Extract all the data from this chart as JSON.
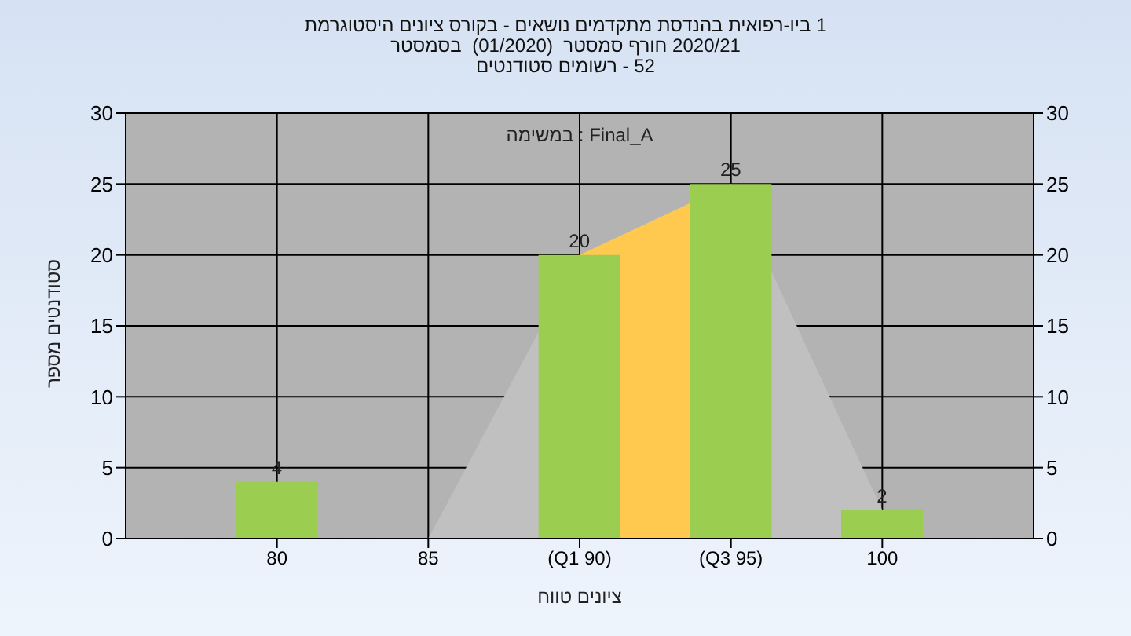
{
  "chart_data": {
    "type": "bar",
    "title": "היסטוגרמת ציונים בקורס - נושאים מתקדמים בהנדסת ביו-רפואית 1",
    "subtitle": "בסמסטר  (01/2020)  סמסטר חורף 2020/21\nסטודנטים רשומים - 52",
    "xlabel": "טווח ציונים",
    "ylabel": "מספר סטודנטים",
    "annotations": [
      "במשימה : Final_A"
    ],
    "categories": [
      "80",
      "85",
      "(Q1 90)",
      "(Q3 95)",
      "100"
    ],
    "series": [
      {
        "type": "area",
        "color": "#c0c0c0",
        "values": [
          null,
          0,
          20,
          25,
          2
        ]
      },
      {
        "type": "area",
        "color": "#ffc94f",
        "values": [
          null,
          null,
          20,
          25,
          null
        ]
      },
      {
        "color": "#9acd50",
        "values": [
          4,
          0,
          20,
          25,
          2
        ],
        "value_labels": [
          "4",
          null,
          "20",
          "25",
          "2"
        ]
      }
    ],
    "ylim": [
      0,
      30
    ],
    "yticks": [
      0,
      5,
      10,
      15,
      20,
      25,
      30
    ],
    "y2lim": [
      0,
      30
    ],
    "y2ticks": [
      0,
      5,
      10,
      15,
      20,
      25,
      30
    ],
    "grid": true
  }
}
